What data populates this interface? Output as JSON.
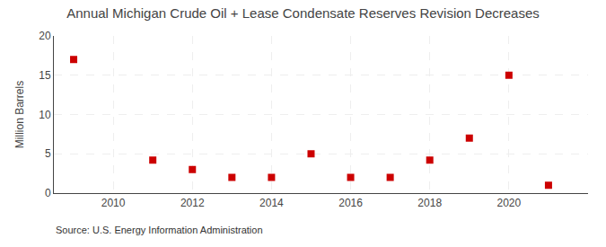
{
  "chart_data": {
    "type": "scatter",
    "title": "Annual Michigan Crude Oil + Lease Condensate Reserves Revision Decreases",
    "ylabel": "Million Barrels",
    "annotations": [
      "Source: U.S. Energy Information Administration"
    ],
    "x": [
      2009,
      2011,
      2012,
      2013,
      2014,
      2015,
      2016,
      2017,
      2018,
      2019,
      2020,
      2021
    ],
    "values": [
      17.0,
      4.2,
      3.0,
      2.0,
      2.0,
      5.0,
      2.0,
      2.0,
      4.2,
      7.0,
      15.0,
      1.0
    ],
    "color": "#cc0000",
    "marker": "square",
    "xlim": [
      2008.5,
      2022.0
    ],
    "ylim": [
      0,
      20
    ],
    "xticks": [
      2010,
      2012,
      2014,
      2016,
      2018,
      2020
    ],
    "yticks": [
      0,
      5,
      10,
      15,
      20
    ],
    "grid": true
  }
}
